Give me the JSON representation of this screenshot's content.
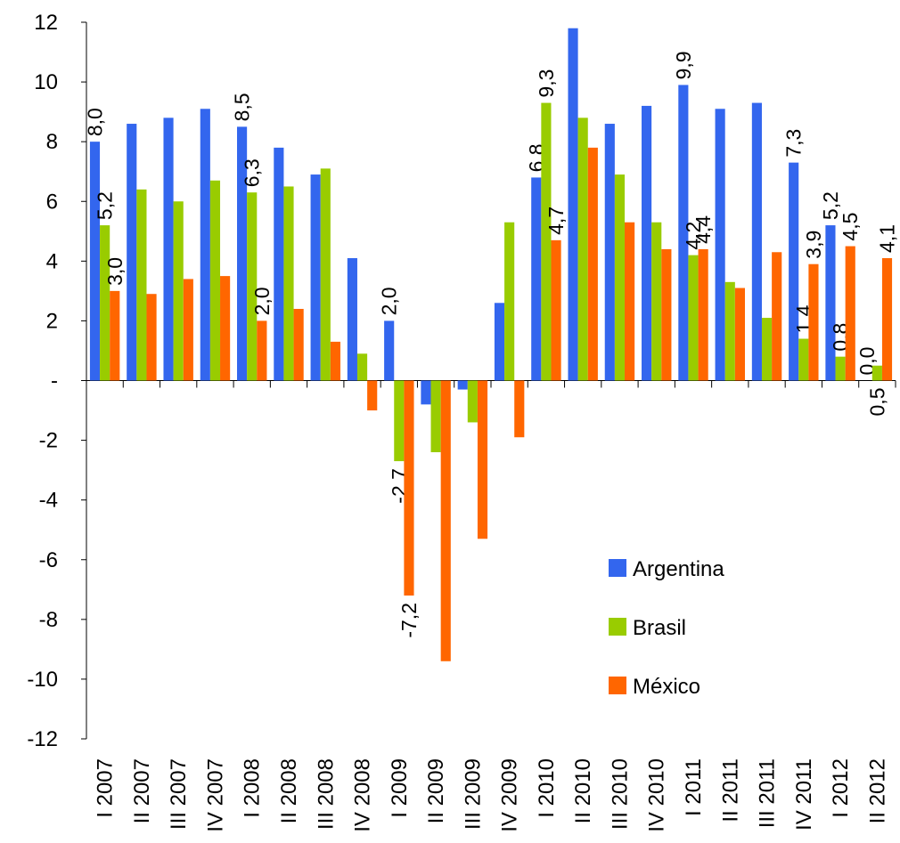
{
  "chart_data": {
    "type": "bar",
    "categories": [
      "I 2007",
      "II 2007",
      "III 2007",
      "IV 2007",
      "I 2008",
      "II 2008",
      "III 2008",
      "IV 2008",
      "I 2009",
      "II 2009",
      "III 2009",
      "IV 2009",
      "I 2010",
      "II 2010",
      "III 2010",
      "IV 2010",
      "I 2011",
      "II 2011",
      "III 2011",
      "IV 2011",
      "I 2012",
      "II 2012"
    ],
    "series": [
      {
        "name": "Argentina",
        "color": "#3366ee",
        "values": [
          8.0,
          8.6,
          8.8,
          9.1,
          8.5,
          7.8,
          6.9,
          4.1,
          2.0,
          -0.8,
          -0.3,
          2.6,
          6.8,
          11.8,
          8.6,
          9.2,
          9.9,
          9.1,
          9.3,
          7.3,
          5.2,
          0.0
        ],
        "value_labels": [
          "8,0",
          null,
          null,
          null,
          "8,5",
          null,
          null,
          null,
          "2,0",
          null,
          null,
          null,
          "6,8",
          null,
          null,
          null,
          "9,9",
          null,
          null,
          "7,3",
          "5,2",
          "0,0"
        ]
      },
      {
        "name": "Brasil",
        "color": "#99cc00",
        "values": [
          5.2,
          6.4,
          6.0,
          6.7,
          6.3,
          6.5,
          7.1,
          0.9,
          -2.7,
          -2.4,
          -1.4,
          5.3,
          9.3,
          8.8,
          6.9,
          5.3,
          4.2,
          3.3,
          2.1,
          1.4,
          0.8,
          0.5
        ],
        "value_labels": [
          "5,2",
          null,
          null,
          null,
          "6,3",
          null,
          null,
          null,
          "-2,7",
          null,
          null,
          null,
          "9,3",
          null,
          null,
          null,
          "4,2",
          null,
          null,
          "1,4",
          "0,8",
          "0,5"
        ]
      },
      {
        "name": "México",
        "color": "#ff6600",
        "values": [
          3.0,
          2.9,
          3.4,
          3.5,
          2.0,
          2.4,
          1.3,
          -1.0,
          -7.2,
          -9.4,
          -5.3,
          -1.9,
          4.7,
          7.8,
          5.3,
          4.4,
          4.4,
          3.1,
          4.3,
          3.9,
          4.5,
          4.1
        ],
        "value_labels": [
          "3,0",
          null,
          null,
          null,
          "2,0",
          null,
          null,
          null,
          "-7,2",
          null,
          null,
          null,
          "4,7",
          null,
          null,
          null,
          "4,4",
          null,
          null,
          "3,9",
          "4,5",
          "4,1"
        ]
      }
    ],
    "ylim": [
      -12,
      12
    ],
    "yticks": [
      -12,
      -10,
      -8,
      -6,
      -4,
      -2,
      {
        "value": 0,
        "label": "-"
      },
      2,
      4,
      6,
      8,
      10,
      12
    ],
    "legend": "lower-right"
  }
}
